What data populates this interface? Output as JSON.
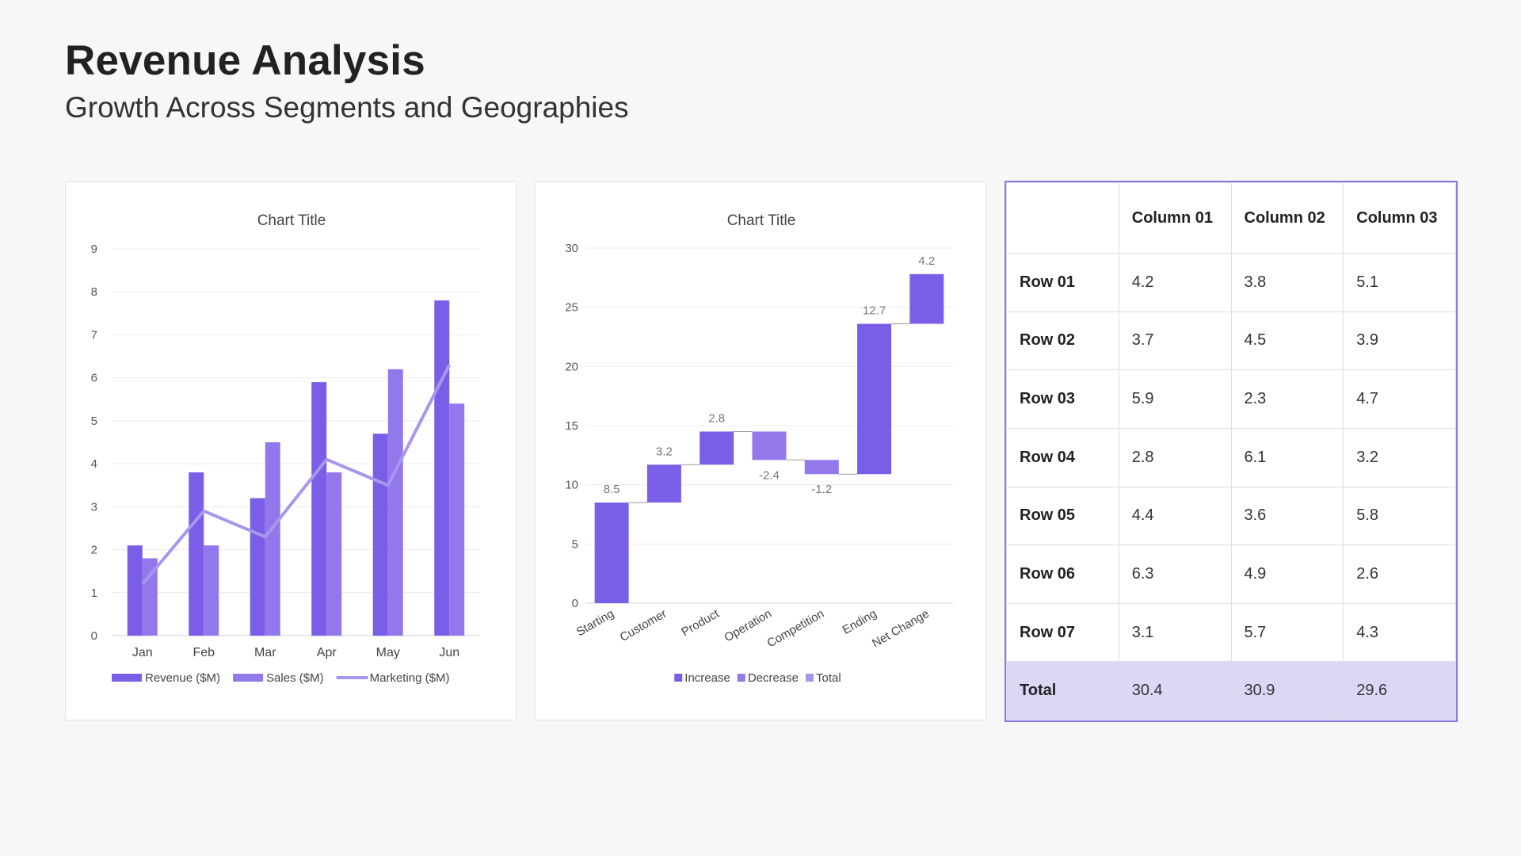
{
  "header": {
    "title": "Revenue Analysis",
    "subtitle": "Growth Across Segments and Geographies"
  },
  "chart_data": [
    {
      "type": "bar",
      "title": "Chart Title",
      "categories": [
        "Jan",
        "Feb",
        "Mar",
        "Apr",
        "May",
        "Jun"
      ],
      "ylim": [
        0,
        9
      ],
      "yticks": [
        "0",
        "1",
        "2",
        "3",
        "4",
        "5",
        "6",
        "7",
        "8",
        "9"
      ],
      "grid": true,
      "legend": "bottom",
      "series": [
        {
          "name": "Revenue ($M)",
          "type": "bar",
          "color": "#7b5ee8",
          "values": [
            2.1,
            3.8,
            3.2,
            5.9,
            4.7,
            7.8
          ]
        },
        {
          "name": "Sales ($M)",
          "type": "bar",
          "color": "#9378ec",
          "values": [
            1.8,
            2.1,
            4.5,
            3.8,
            6.2,
            5.4
          ]
        },
        {
          "name": "Marketing ($M)",
          "type": "line",
          "color": "#a896ee",
          "values": [
            1.2,
            2.9,
            2.3,
            4.1,
            3.5,
            6.3
          ]
        }
      ]
    },
    {
      "type": "waterfall",
      "title": "Chart Title",
      "categories": [
        "Starting",
        "Customer",
        "Product",
        "Operation",
        "Competition",
        "Ending",
        "Net Change"
      ],
      "ylim": [
        0,
        30
      ],
      "yticks": [
        "0",
        "5",
        "10",
        "15",
        "20",
        "25",
        "30"
      ],
      "grid": true,
      "legend": "bottom",
      "legend_entries": [
        {
          "name": "Increase",
          "color": "#7b5ee8"
        },
        {
          "name": "Decrease",
          "color": "#9378ec"
        },
        {
          "name": "Total",
          "color": "#a896ee"
        }
      ],
      "bars": [
        {
          "base": 0,
          "value": 8.5,
          "label": "8.5",
          "kind": "increase"
        },
        {
          "base": 8.5,
          "value": 3.2,
          "label": "3.2",
          "kind": "increase"
        },
        {
          "base": 11.7,
          "value": 2.8,
          "label": "2.8",
          "kind": "increase"
        },
        {
          "base": 14.5,
          "value": -2.4,
          "label": "-2.4",
          "kind": "decrease"
        },
        {
          "base": 12.1,
          "value": -1.2,
          "label": "-1.2",
          "kind": "decrease"
        },
        {
          "base": 10.9,
          "value": 12.7,
          "label": "12.7",
          "kind": "increase"
        },
        {
          "base": 23.6,
          "value": 4.2,
          "label": "4.2",
          "kind": "increase"
        }
      ]
    }
  ],
  "table": {
    "columns": [
      "",
      "Column 01",
      "Column 02",
      "Column 03"
    ],
    "rows": [
      [
        "Row 01",
        "4.2",
        "3.8",
        "5.1"
      ],
      [
        "Row 02",
        "3.7",
        "4.5",
        "3.9"
      ],
      [
        "Row 03",
        "5.9",
        "2.3",
        "4.7"
      ],
      [
        "Row 04",
        "2.8",
        "6.1",
        "3.2"
      ],
      [
        "Row 05",
        "4.4",
        "3.6",
        "5.8"
      ],
      [
        "Row 06",
        "6.3",
        "4.9",
        "2.6"
      ],
      [
        "Row 07",
        "3.1",
        "5.7",
        "4.3"
      ]
    ],
    "total": [
      "Total",
      "30.4",
      "30.9",
      "29.6"
    ]
  }
}
